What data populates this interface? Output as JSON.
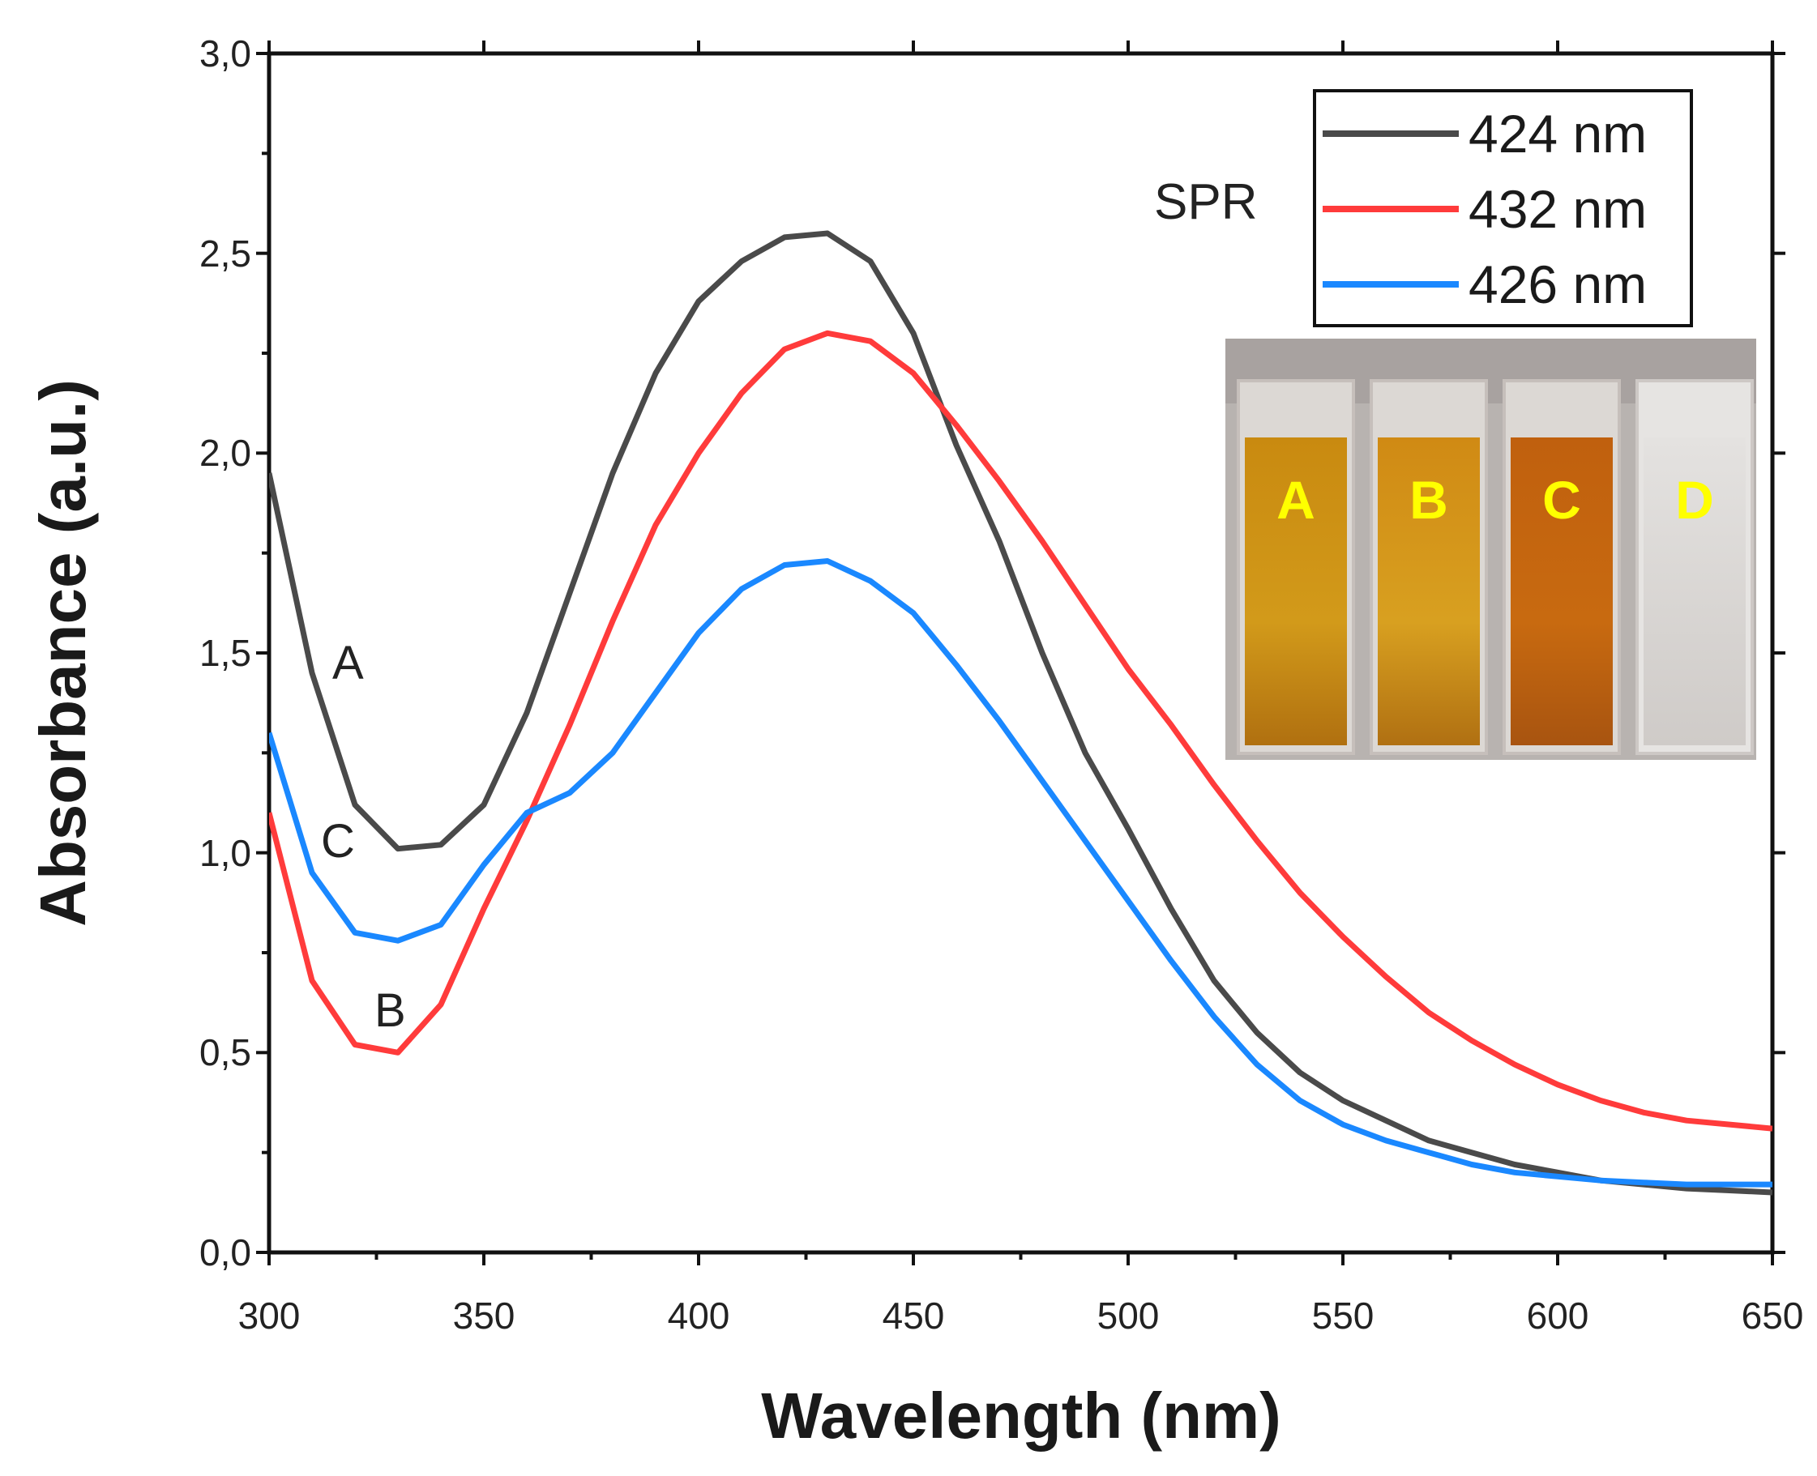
{
  "chart_data": {
    "type": "line",
    "title": "",
    "xlabel": "Wavelength (nm)",
    "ylabel": "Absorbance (a.u.)",
    "xlim": [
      300,
      650
    ],
    "ylim": [
      0.0,
      3.0
    ],
    "x_ticks": [
      300,
      350,
      400,
      450,
      500,
      550,
      600,
      650
    ],
    "y_ticks": [
      0.0,
      0.5,
      1.0,
      1.5,
      2.0,
      2.5,
      3.0
    ],
    "x_tick_labels": [
      "300",
      "350",
      "400",
      "450",
      "500",
      "550",
      "600",
      "650"
    ],
    "y_tick_labels": [
      "0,0",
      "0,5",
      "1,0",
      "1,5",
      "2,0",
      "2,5",
      "3,0"
    ],
    "grid": false,
    "legend_position": "top-right",
    "legend_title": "SPR",
    "x": [
      300,
      310,
      320,
      330,
      340,
      350,
      360,
      370,
      380,
      390,
      400,
      410,
      420,
      430,
      440,
      450,
      460,
      470,
      480,
      490,
      500,
      510,
      520,
      530,
      540,
      550,
      560,
      570,
      580,
      590,
      600,
      610,
      620,
      630,
      640,
      650
    ],
    "series": [
      {
        "name": "424 nm",
        "label": "A",
        "color": "#4a4a4a",
        "values": [
          1.95,
          1.45,
          1.12,
          1.01,
          1.02,
          1.12,
          1.35,
          1.65,
          1.95,
          2.2,
          2.38,
          2.48,
          2.54,
          2.55,
          2.48,
          2.3,
          2.02,
          1.78,
          1.5,
          1.25,
          1.06,
          0.86,
          0.68,
          0.55,
          0.45,
          0.38,
          0.33,
          0.28,
          0.25,
          0.22,
          0.2,
          0.18,
          0.17,
          0.16,
          0.155,
          0.15
        ]
      },
      {
        "name": "432 nm",
        "label": "B",
        "color": "#ff3b3b",
        "values": [
          1.1,
          0.68,
          0.52,
          0.5,
          0.62,
          0.86,
          1.08,
          1.32,
          1.58,
          1.82,
          2.0,
          2.15,
          2.26,
          2.3,
          2.28,
          2.2,
          2.07,
          1.93,
          1.78,
          1.62,
          1.46,
          1.32,
          1.17,
          1.03,
          0.9,
          0.79,
          0.69,
          0.6,
          0.53,
          0.47,
          0.42,
          0.38,
          0.35,
          0.33,
          0.32,
          0.31
        ]
      },
      {
        "name": "426 nm",
        "label": "C",
        "color": "#1a88ff",
        "values": [
          1.3,
          0.95,
          0.8,
          0.78,
          0.82,
          0.97,
          1.1,
          1.15,
          1.25,
          1.4,
          1.55,
          1.66,
          1.72,
          1.73,
          1.68,
          1.6,
          1.47,
          1.33,
          1.18,
          1.03,
          0.88,
          0.73,
          0.59,
          0.47,
          0.38,
          0.32,
          0.28,
          0.25,
          0.22,
          0.2,
          0.19,
          0.18,
          0.175,
          0.17,
          0.17,
          0.17
        ]
      }
    ],
    "inset": {
      "description_labels": [
        "A",
        "B",
        "C",
        "D"
      ]
    }
  },
  "colors": {
    "axis": "#111111",
    "cuvette_label": "#ffff00",
    "inset_bg": "#b8b3b0"
  }
}
